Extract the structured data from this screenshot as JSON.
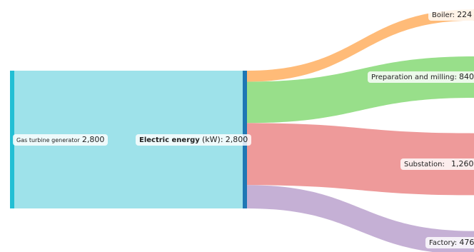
{
  "chart_data": {
    "type": "sankey",
    "title": "",
    "nodes": [
      {
        "id": "gen",
        "name": "Gas turbine generator",
        "value": 2800,
        "value_label": "2,800",
        "color": "#22bfd4"
      },
      {
        "id": "elec",
        "name": "Electric energy",
        "unit": "(kW):",
        "value": 2800,
        "value_label": "2,800",
        "color": "#1f77b4"
      },
      {
        "id": "boiler",
        "name": "Boiler:",
        "value": 224,
        "value_label": "224",
        "color": "#ffbb78"
      },
      {
        "id": "prep",
        "name": "Preparation and milling:",
        "value": 840,
        "value_label": "840",
        "color": "#98df8a"
      },
      {
        "id": "sub",
        "name": "Substation:",
        "value": 1260,
        "value_label": "1,260",
        "color": "#ff9896"
      },
      {
        "id": "factory",
        "name": "Factory:",
        "value": 476,
        "value_label": "476",
        "color": "#c5b0d5"
      }
    ],
    "links": [
      {
        "source": "gen",
        "target": "elec",
        "value": 2800,
        "color": "#9ee2ea"
      },
      {
        "source": "elec",
        "target": "boiler",
        "value": 224,
        "color": "#ffbb78"
      },
      {
        "source": "elec",
        "target": "prep",
        "value": 840,
        "color": "#98df8a"
      },
      {
        "source": "elec",
        "target": "sub",
        "value": 1260,
        "color": "#ee9a9a"
      },
      {
        "source": "elec",
        "target": "factory",
        "value": 476,
        "color": "#c5b0d5"
      }
    ]
  }
}
